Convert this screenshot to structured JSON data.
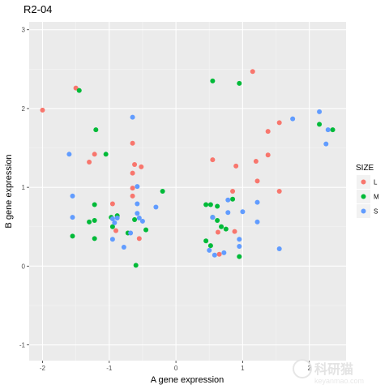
{
  "chart_data": {
    "type": "scatter",
    "title": "R2-04",
    "xlabel": "A gene expression",
    "ylabel": "B gene expression",
    "xlim": [
      -2.2,
      2.55
    ],
    "ylim": [
      -1.2,
      3.1
    ],
    "xticks": [
      -2,
      -1,
      0,
      1,
      2
    ],
    "yticks": [
      -1,
      0,
      1,
      2,
      3
    ],
    "grid": true,
    "legend": {
      "title": "SIZE",
      "placement": "right"
    },
    "series": [
      {
        "name": "L",
        "color": "#F8766D",
        "points": [
          [
            -2.0,
            1.98
          ],
          [
            -1.5,
            2.26
          ],
          [
            -1.3,
            1.32
          ],
          [
            -1.22,
            1.42
          ],
          [
            -0.95,
            0.79
          ],
          [
            -0.9,
            0.45
          ],
          [
            -0.65,
            1.56
          ],
          [
            -0.65,
            1.18
          ],
          [
            -0.62,
            1.29
          ],
          [
            -0.52,
            1.26
          ],
          [
            -0.65,
            0.99
          ],
          [
            -0.65,
            0.89
          ],
          [
            -0.55,
            0.35
          ],
          [
            0.55,
            1.35
          ],
          [
            0.85,
            0.95
          ],
          [
            0.9,
            1.27
          ],
          [
            0.88,
            0.44
          ],
          [
            0.63,
            0.43
          ],
          [
            0.65,
            0.15
          ],
          [
            1.15,
            2.47
          ],
          [
            1.2,
            1.33
          ],
          [
            1.22,
            1.08
          ],
          [
            1.38,
            1.41
          ],
          [
            1.38,
            1.71
          ],
          [
            1.55,
            1.82
          ],
          [
            1.55,
            0.95
          ]
        ]
      },
      {
        "name": "M",
        "color": "#00BA38",
        "points": [
          [
            -1.45,
            2.23
          ],
          [
            -1.2,
            1.73
          ],
          [
            -1.05,
            1.42
          ],
          [
            -1.55,
            0.38
          ],
          [
            -1.22,
            0.35
          ],
          [
            -1.22,
            0.78
          ],
          [
            -1.3,
            0.56
          ],
          [
            -1.22,
            0.58
          ],
          [
            -0.97,
            0.62
          ],
          [
            -0.95,
            0.5
          ],
          [
            -0.88,
            0.64
          ],
          [
            -0.72,
            0.42
          ],
          [
            -0.62,
            0.59
          ],
          [
            -0.45,
            0.46
          ],
          [
            -0.2,
            0.95
          ],
          [
            -0.6,
            0.01
          ],
          [
            0.55,
            2.35
          ],
          [
            0.95,
            2.32
          ],
          [
            0.45,
            0.78
          ],
          [
            0.52,
            0.78
          ],
          [
            0.55,
            0.62
          ],
          [
            0.62,
            0.76
          ],
          [
            0.62,
            0.58
          ],
          [
            0.68,
            0.5
          ],
          [
            0.75,
            0.47
          ],
          [
            0.85,
            0.85
          ],
          [
            0.45,
            0.32
          ],
          [
            0.52,
            0.26
          ],
          [
            0.95,
            0.12
          ],
          [
            2.15,
            1.8
          ],
          [
            2.35,
            1.73
          ]
        ]
      },
      {
        "name": "S",
        "color": "#619CFF",
        "points": [
          [
            -1.6,
            1.42
          ],
          [
            -1.55,
            0.89
          ],
          [
            -1.55,
            0.62
          ],
          [
            -0.95,
            0.6
          ],
          [
            -0.95,
            0.34
          ],
          [
            -0.92,
            0.55
          ],
          [
            -0.88,
            0.61
          ],
          [
            -0.78,
            0.24
          ],
          [
            -0.68,
            0.42
          ],
          [
            -0.65,
            1.89
          ],
          [
            -0.58,
            1.01
          ],
          [
            -0.58,
            0.79
          ],
          [
            -0.58,
            0.67
          ],
          [
            -0.55,
            0.61
          ],
          [
            -0.5,
            0.57
          ],
          [
            -0.3,
            0.75
          ],
          [
            0.55,
            0.62
          ],
          [
            0.5,
            0.2
          ],
          [
            0.58,
            0.14
          ],
          [
            0.72,
            0.17
          ],
          [
            0.95,
            0.34
          ],
          [
            0.95,
            0.25
          ],
          [
            1.0,
            0.69
          ],
          [
            0.78,
            0.84
          ],
          [
            0.78,
            0.68
          ],
          [
            1.22,
            0.56
          ],
          [
            1.22,
            0.81
          ],
          [
            1.55,
            0.22
          ],
          [
            1.75,
            1.87
          ],
          [
            2.15,
            1.96
          ],
          [
            2.25,
            1.55
          ],
          [
            2.28,
            1.73
          ]
        ]
      }
    ]
  },
  "watermark": {
    "logo_text": "科研猫",
    "url_text": "keyanmao.com"
  }
}
